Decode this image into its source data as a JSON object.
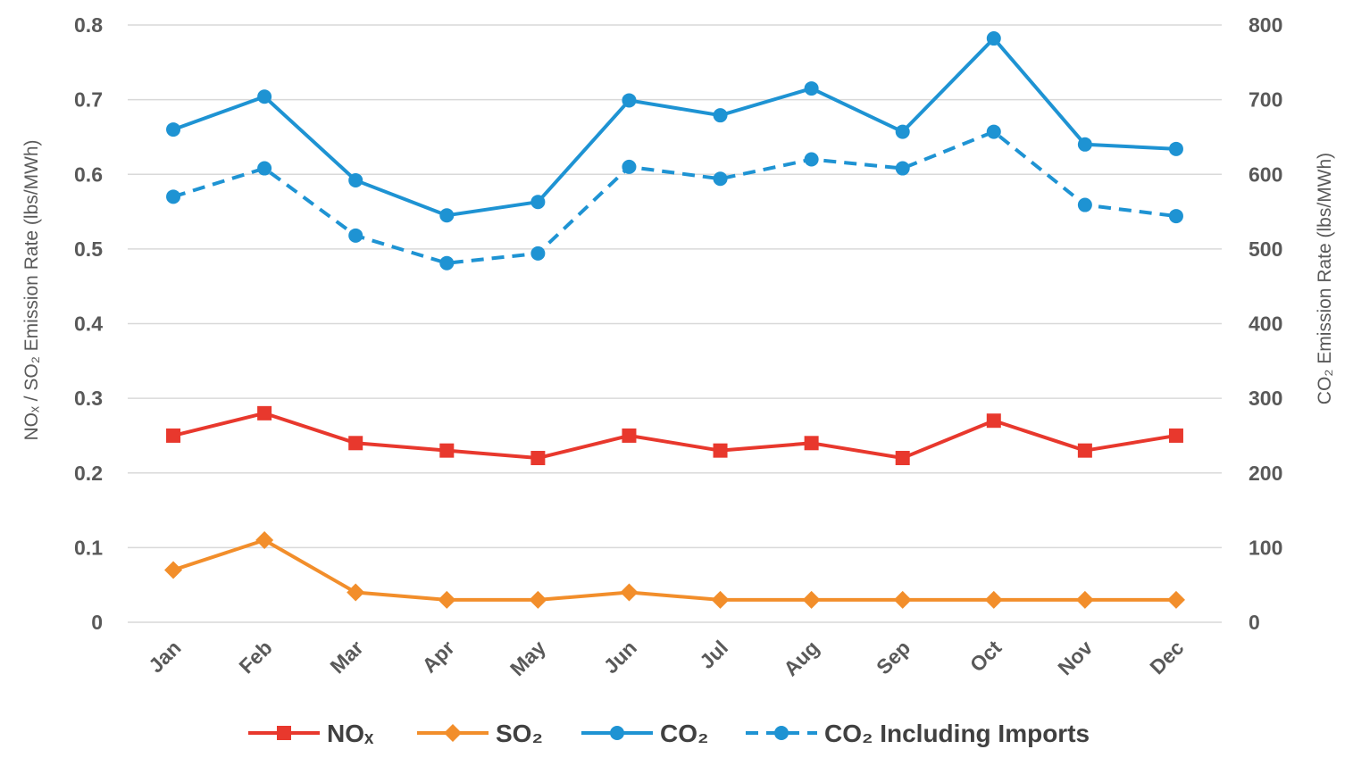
{
  "chart_data": {
    "type": "line",
    "categories": [
      "Jan",
      "Feb",
      "Mar",
      "Apr",
      "May",
      "Jun",
      "Jul",
      "Aug",
      "Sep",
      "Oct",
      "Nov",
      "Dec"
    ],
    "y_left": {
      "title": "NOₓ / SO₂ Emission Rate (lbs/MWh)",
      "range": [
        0,
        0.8
      ],
      "ticks": [
        0,
        0.1,
        0.2,
        0.3,
        0.4,
        0.5,
        0.6,
        0.7,
        0.8
      ],
      "tick_labels": [
        "0",
        "0.1",
        "0.2",
        "0.3",
        "0.4",
        "0.5",
        "0.6",
        "0.7",
        "0.8"
      ]
    },
    "y_right": {
      "title": "CO₂ Emission Rate (lbs/MWh)",
      "range": [
        0,
        800
      ],
      "ticks": [
        0,
        100,
        200,
        300,
        400,
        500,
        600,
        700,
        800
      ],
      "tick_labels": [
        "0",
        "100",
        "200",
        "300",
        "400",
        "500",
        "600",
        "700",
        "800"
      ]
    },
    "grid": true,
    "legend_position": "bottom",
    "series": [
      {
        "name": "NOₓ",
        "axis": "left",
        "marker": "square",
        "dash": false,
        "color": "#e8382d",
        "values": [
          0.25,
          0.28,
          0.24,
          0.23,
          0.22,
          0.25,
          0.23,
          0.24,
          0.22,
          0.27,
          0.23,
          0.25
        ]
      },
      {
        "name": "SO₂",
        "axis": "left",
        "marker": "diamond",
        "dash": false,
        "color": "#f28e2b",
        "values": [
          0.07,
          0.11,
          0.04,
          0.03,
          0.03,
          0.04,
          0.03,
          0.03,
          0.03,
          0.03,
          0.03,
          0.03
        ]
      },
      {
        "name": "CO₂",
        "axis": "right",
        "marker": "circle",
        "dash": false,
        "color": "#1e93d3",
        "values": [
          660,
          704,
          592,
          545,
          563,
          699,
          679,
          715,
          657,
          782,
          640,
          634
        ]
      },
      {
        "name": "CO₂ Including Imports",
        "axis": "right",
        "marker": "circle",
        "dash": true,
        "color": "#1e93d3",
        "values": [
          570,
          608,
          518,
          481,
          494,
          610,
          594,
          620,
          608,
          657,
          559,
          544
        ]
      }
    ]
  }
}
